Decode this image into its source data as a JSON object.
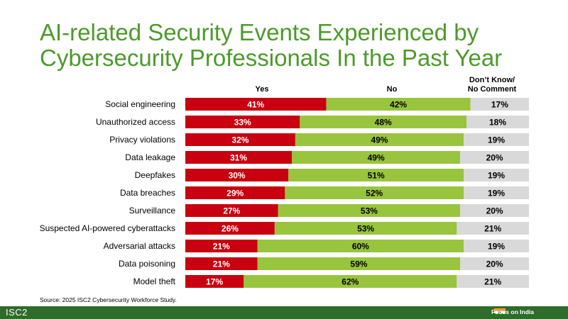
{
  "title_line1": "AI-related Security Events Experienced by",
  "title_line2": "Cybersecurity Professionals In the Past Year",
  "source": "Source: 2025 ISC2 Cybersecurity Workforce Study.",
  "footer": {
    "logo": "ISC2",
    "focus": "Focus on India"
  },
  "colors": {
    "yes": "#c8000f",
    "no": "#99c43e",
    "dk": "#d9d9d9",
    "title": "#4c9a2a"
  },
  "chart_data": {
    "type": "bar",
    "stacked": true,
    "orientation": "horizontal",
    "categories": [
      "Social engineering",
      "Unauthorized access",
      "Privacy violations",
      "Data leakage",
      "Deepfakes",
      "Data breaches",
      "Surveillance",
      "Suspected AI-powered cyberattacks",
      "Adversarial attacks",
      "Data poisoning",
      "Model theft"
    ],
    "series": [
      {
        "name": "Yes",
        "values": [
          41,
          33,
          32,
          31,
          30,
          29,
          27,
          26,
          21,
          21,
          17
        ]
      },
      {
        "name": "No",
        "values": [
          42,
          48,
          49,
          49,
          51,
          52,
          53,
          53,
          60,
          59,
          62
        ]
      },
      {
        "name": "Don't Know/ No Comment",
        "values": [
          17,
          18,
          19,
          20,
          19,
          19,
          20,
          21,
          19,
          20,
          21
        ]
      }
    ],
    "legend_line1": "Don’t Know/",
    "legend_line2": "No Comment",
    "unit": "%"
  }
}
